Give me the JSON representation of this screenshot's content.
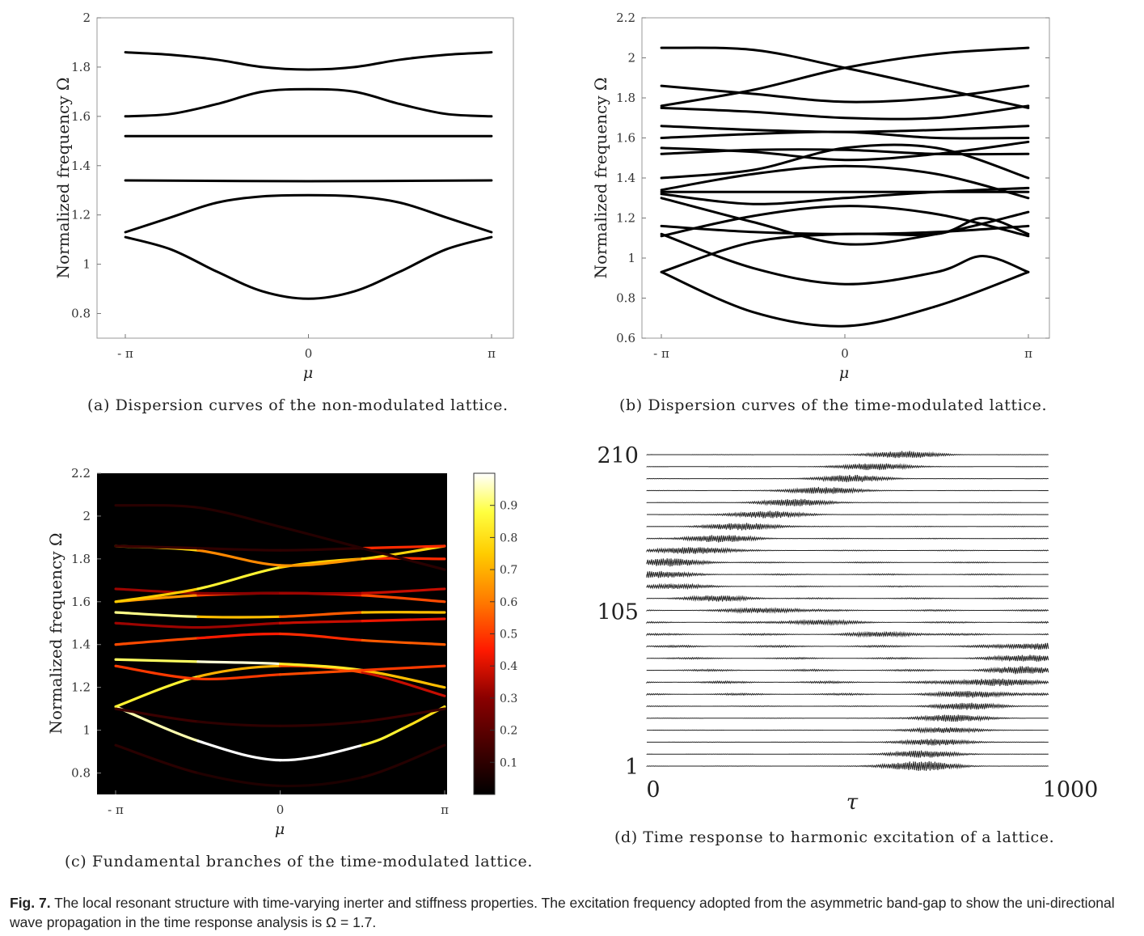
{
  "chart_data": [
    {
      "id": "a",
      "type": "line",
      "caption": "(a) Dispersion curves of the non-modulated lattice.",
      "xlabel": "μ",
      "ylabel": "Normalized frequency Ω",
      "xlim": [
        -3.14159,
        3.14159
      ],
      "ylim": [
        0.7,
        2.0
      ],
      "x_ticks": [
        "- π",
        "0",
        "π"
      ],
      "y_ticks": [
        "0.8",
        "1",
        "1.2",
        "1.4",
        "1.6",
        "1.8",
        "2"
      ],
      "series": [
        {
          "x": [
            -3.14,
            -2.36,
            -1.57,
            -0.79,
            0,
            0.79,
            1.57,
            2.36,
            3.14
          ],
          "values": [
            1.11,
            1.06,
            0.97,
            0.89,
            0.86,
            0.89,
            0.97,
            1.06,
            1.11
          ]
        },
        {
          "x": [
            -3.14,
            -2.36,
            -1.57,
            -0.79,
            0,
            0.79,
            1.57,
            2.36,
            3.14
          ],
          "values": [
            1.13,
            1.19,
            1.25,
            1.275,
            1.28,
            1.275,
            1.25,
            1.19,
            1.13
          ]
        },
        {
          "x": [
            -3.14,
            0,
            3.14
          ],
          "values": [
            1.34,
            1.337,
            1.34
          ]
        },
        {
          "x": [
            -3.14,
            0,
            3.14
          ],
          "values": [
            1.52,
            1.52,
            1.52
          ]
        },
        {
          "x": [
            -3.14,
            -2.36,
            -1.57,
            -0.79,
            0,
            0.79,
            1.57,
            2.36,
            3.14
          ],
          "values": [
            1.6,
            1.61,
            1.65,
            1.7,
            1.71,
            1.7,
            1.65,
            1.61,
            1.6
          ]
        },
        {
          "x": [
            -3.14,
            -2.36,
            -1.57,
            -0.79,
            0,
            0.79,
            1.57,
            2.36,
            3.14
          ],
          "values": [
            1.86,
            1.85,
            1.83,
            1.8,
            1.79,
            1.8,
            1.83,
            1.85,
            1.86
          ]
        }
      ]
    },
    {
      "id": "b",
      "type": "line",
      "caption": "(b) Dispersion curves of the time-modulated lattice.",
      "xlabel": "μ",
      "ylabel": "Normalized frequency Ω",
      "xlim": [
        -3.14159,
        3.14159
      ],
      "ylim": [
        0.6,
        2.2
      ],
      "x_ticks": [
        "- π",
        "0",
        "π"
      ],
      "y_ticks": [
        "0.6",
        "0.8",
        "1",
        "1.2",
        "1.4",
        "1.6",
        "1.8",
        "2",
        "2.2"
      ],
      "series": [
        {
          "x": [
            -3.14,
            -1.57,
            0,
            1.57,
            3.14
          ],
          "values": [
            0.93,
            0.73,
            0.66,
            0.76,
            0.93
          ]
        },
        {
          "x": [
            -3.14,
            -1.57,
            0,
            1.57,
            2.36,
            3.14
          ],
          "values": [
            0.93,
            1.08,
            1.12,
            1.12,
            1.2,
            1.12
          ]
        },
        {
          "x": [
            -3.14,
            -1.57,
            0,
            1.57,
            2.36,
            3.14
          ],
          "values": [
            1.12,
            0.95,
            0.87,
            0.93,
            1.01,
            0.93
          ]
        },
        {
          "x": [
            -3.14,
            -1.57,
            0,
            1.57,
            3.14
          ],
          "values": [
            1.16,
            1.13,
            1.12,
            1.13,
            1.16
          ]
        },
        {
          "x": [
            -3.14,
            -1.57,
            0,
            1.57,
            3.14
          ],
          "values": [
            1.11,
            1.21,
            1.26,
            1.22,
            1.11
          ]
        },
        {
          "x": [
            -3.14,
            -1.57,
            0,
            1.57,
            3.14
          ],
          "values": [
            1.3,
            1.18,
            1.07,
            1.12,
            1.23
          ]
        },
        {
          "x": [
            -3.14,
            -1.57,
            0,
            1.57,
            3.14
          ],
          "values": [
            1.34,
            1.42,
            1.46,
            1.42,
            1.3
          ]
        },
        {
          "x": [
            -3.14,
            -1.57,
            0,
            1.57,
            3.14
          ],
          "values": [
            1.33,
            1.33,
            1.33,
            1.33,
            1.33
          ]
        },
        {
          "x": [
            -3.14,
            -1.57,
            0,
            1.57,
            3.14
          ],
          "values": [
            1.32,
            1.27,
            1.3,
            1.33,
            1.35
          ]
        },
        {
          "x": [
            -3.14,
            -1.57,
            0,
            1.57,
            3.14
          ],
          "values": [
            1.4,
            1.44,
            1.55,
            1.55,
            1.4
          ]
        },
        {
          "x": [
            -3.14,
            -1.57,
            0,
            1.57,
            3.14
          ],
          "values": [
            1.52,
            1.54,
            1.54,
            1.52,
            1.52
          ]
        },
        {
          "x": [
            -3.14,
            -1.57,
            0,
            1.57,
            3.14
          ],
          "values": [
            1.55,
            1.53,
            1.49,
            1.52,
            1.58
          ]
        },
        {
          "x": [
            -3.14,
            -1.57,
            0,
            1.57,
            3.14
          ],
          "values": [
            1.6,
            1.62,
            1.63,
            1.6,
            1.6
          ]
        },
        {
          "x": [
            -3.14,
            -1.57,
            0,
            1.57,
            3.14
          ],
          "values": [
            1.66,
            1.64,
            1.63,
            1.64,
            1.66
          ]
        },
        {
          "x": [
            -3.14,
            -1.57,
            0,
            1.57,
            3.14
          ],
          "values": [
            1.75,
            1.73,
            1.7,
            1.7,
            1.76
          ]
        },
        {
          "x": [
            -3.14,
            -1.57,
            0,
            1.57,
            3.14
          ],
          "values": [
            1.76,
            1.84,
            1.95,
            2.02,
            2.05
          ]
        },
        {
          "x": [
            -3.14,
            -1.57,
            0,
            1.57,
            3.14
          ],
          "values": [
            2.05,
            2.04,
            1.95,
            1.85,
            1.75
          ]
        },
        {
          "x": [
            -3.14,
            -1.57,
            0,
            1.57,
            3.14
          ],
          "values": [
            1.86,
            1.82,
            1.78,
            1.8,
            1.86
          ]
        }
      ]
    },
    {
      "id": "c",
      "type": "heatmap",
      "caption": "(c) Fundamental branches of the time-modulated lattice.",
      "xlabel": "μ",
      "ylabel": "Normalized frequency Ω",
      "xlim": [
        -3.14159,
        3.14159
      ],
      "ylim": [
        0.7,
        2.2
      ],
      "x_ticks": [
        "- π",
        "0",
        "π"
      ],
      "y_ticks": [
        "0.8",
        "1",
        "1.2",
        "1.4",
        "1.6",
        "1.8",
        "2",
        "2.2"
      ],
      "colorbar": {
        "range": [
          0,
          1
        ],
        "ticks": [
          "0.1",
          "0.2",
          "0.3",
          "0.4",
          "0.5",
          "0.6",
          "0.7",
          "0.8",
          "0.9"
        ]
      },
      "series": [
        {
          "x": [
            -3.14,
            -1.57,
            0,
            1.57,
            2.36,
            3.14
          ],
          "values": [
            1.11,
            0.95,
            0.86,
            0.93,
            1.01,
            1.11
          ],
          "intensity": [
            0.9,
            1.0,
            1.0,
            1.0,
            0.7,
            0.9
          ]
        },
        {
          "x": [
            -3.14,
            -1.57,
            0,
            1.57,
            3.14
          ],
          "values": [
            1.11,
            1.25,
            1.3,
            1.27,
            1.16
          ],
          "intensity": [
            0.9,
            0.8,
            0.6,
            0.45,
            0.3
          ]
        },
        {
          "x": [
            -3.14,
            -1.57,
            0,
            1.57,
            3.14
          ],
          "values": [
            1.33,
            1.32,
            1.31,
            1.28,
            1.2
          ],
          "intensity": [
            0.8,
            1.0,
            0.95,
            0.7,
            0.75
          ]
        },
        {
          "x": [
            -3.14,
            -1.57,
            0,
            1.57,
            3.14
          ],
          "values": [
            1.3,
            1.24,
            1.26,
            1.28,
            1.3
          ],
          "intensity": [
            0.55,
            0.45,
            0.55,
            0.5,
            0.5
          ]
        },
        {
          "x": [
            -3.14,
            -1.57,
            0,
            1.57,
            3.14
          ],
          "values": [
            1.4,
            1.43,
            1.45,
            1.42,
            1.4
          ],
          "intensity": [
            0.6,
            0.45,
            0.45,
            0.5,
            0.6
          ]
        },
        {
          "x": [
            -3.14,
            -1.57,
            0,
            1.57,
            3.14
          ],
          "values": [
            1.55,
            1.53,
            1.53,
            1.55,
            1.55
          ],
          "intensity": [
            1.0,
            0.85,
            0.6,
            0.5,
            0.95
          ]
        },
        {
          "x": [
            -3.14,
            -1.57,
            0,
            1.57,
            3.14
          ],
          "values": [
            1.5,
            1.48,
            1.5,
            1.51,
            1.52
          ],
          "intensity": [
            0.35,
            0.3,
            0.35,
            0.4,
            0.45
          ]
        },
        {
          "x": [
            -3.14,
            -1.57,
            0,
            1.57,
            3.14
          ],
          "values": [
            1.6,
            1.63,
            1.64,
            1.63,
            1.6
          ],
          "intensity": [
            0.7,
            0.6,
            0.4,
            0.45,
            0.6
          ]
        },
        {
          "x": [
            -3.14,
            -1.57,
            0,
            1.57,
            3.14
          ],
          "values": [
            1.66,
            1.64,
            1.64,
            1.64,
            1.66
          ],
          "intensity": [
            0.35,
            0.3,
            0.3,
            0.35,
            0.4
          ]
        },
        {
          "x": [
            -3.14,
            -1.57,
            0,
            1.57,
            3.14
          ],
          "values": [
            1.6,
            1.66,
            1.76,
            1.8,
            1.8
          ],
          "intensity": [
            0.7,
            0.8,
            0.9,
            0.6,
            0.35
          ]
        },
        {
          "x": [
            -3.14,
            -1.57,
            0,
            1.57,
            3.14
          ],
          "values": [
            1.86,
            1.84,
            1.77,
            1.8,
            1.86
          ],
          "intensity": [
            0.85,
            0.7,
            0.55,
            0.75,
            0.8
          ]
        },
        {
          "x": [
            -3.14,
            -1.57,
            0,
            1.57,
            3.14
          ],
          "values": [
            1.86,
            1.85,
            1.84,
            1.85,
            1.86
          ],
          "intensity": [
            0.15,
            0.1,
            0.1,
            0.1,
            0.85
          ]
        },
        {
          "x": [
            -3.14,
            -1.57,
            0,
            1.57,
            3.14
          ],
          "values": [
            1.1,
            1.04,
            1.02,
            1.04,
            1.1
          ],
          "intensity": [
            0.15,
            0.1,
            0.1,
            0.1,
            0.15
          ]
        },
        {
          "x": [
            -3.14,
            -1.57,
            0,
            1.57,
            3.14
          ],
          "values": [
            2.05,
            2.04,
            1.95,
            1.85,
            1.75
          ],
          "intensity": [
            0.1,
            0.08,
            0.08,
            0.08,
            0.1
          ]
        },
        {
          "x": [
            -3.14,
            -1.57,
            0,
            1.57,
            3.14
          ],
          "values": [
            0.93,
            0.8,
            0.74,
            0.78,
            0.93
          ],
          "intensity": [
            0.1,
            0.08,
            0.06,
            0.06,
            0.1
          ]
        }
      ]
    },
    {
      "id": "d",
      "type": "line",
      "caption": "(d) Time response to harmonic excitation of a lattice.",
      "xlabel": "τ",
      "xlim": [
        0,
        1000
      ],
      "ylim": [
        1,
        210
      ],
      "x_ticks": [
        "0",
        "1000"
      ],
      "y_ticks": [
        "1",
        "105",
        "210"
      ],
      "traces": [
        {
          "center": 680,
          "amp": 0.7,
          "tail": 0.04
        },
        {
          "center": 690,
          "amp": 0.5,
          "tail": 0.04
        },
        {
          "center": 720,
          "amp": 0.45,
          "tail": 0.05
        },
        {
          "center": 740,
          "amp": 0.4,
          "tail": 0.05
        },
        {
          "center": 760,
          "amp": 0.5,
          "tail": 0.07
        },
        {
          "center": 800,
          "amp": 0.45,
          "tail": 0.12
        },
        {
          "center": 820,
          "amp": 0.45,
          "tail": 0.28
        },
        {
          "center": 860,
          "amp": 0.5,
          "tail": 0.3
        },
        {
          "center": 940,
          "amp": 0.45,
          "tail": 0.28
        },
        {
          "center": 960,
          "amp": 0.45,
          "tail": 0.25
        },
        {
          "center": 980,
          "amp": 0.45,
          "tail": 0.3
        },
        {
          "center": 600,
          "amp": 0.3,
          "tail": 0.4
        },
        {
          "center": 420,
          "amp": 0.3,
          "tail": 0.35
        },
        {
          "center": 300,
          "amp": 0.35,
          "tail": 0.3
        },
        {
          "center": 180,
          "amp": 0.35,
          "tail": 0.25
        },
        {
          "center": 60,
          "amp": 0.3,
          "tail": 0.25
        },
        {
          "center": 15,
          "amp": 0.45,
          "tail": 0.2
        },
        {
          "center": 60,
          "amp": 0.5,
          "tail": 0.15
        },
        {
          "center": 120,
          "amp": 0.5,
          "tail": 0.12
        },
        {
          "center": 180,
          "amp": 0.5,
          "tail": 0.1
        },
        {
          "center": 240,
          "amp": 0.5,
          "tail": 0.08
        },
        {
          "center": 300,
          "amp": 0.5,
          "tail": 0.07
        },
        {
          "center": 370,
          "amp": 0.5,
          "tail": 0.06
        },
        {
          "center": 440,
          "amp": 0.5,
          "tail": 0.05
        },
        {
          "center": 510,
          "amp": 0.5,
          "tail": 0.05
        },
        {
          "center": 570,
          "amp": 0.5,
          "tail": 0.04
        },
        {
          "center": 640,
          "amp": 0.5,
          "tail": 0.04
        }
      ]
    }
  ],
  "figure_caption": {
    "label": "Fig. 7.",
    "text": " The local resonant structure with time-varying inerter and stiffness properties. The excitation frequency adopted from the asymmetric band-gap to show the uni-directional wave propagation in the time response analysis is Ω = 1.7."
  }
}
